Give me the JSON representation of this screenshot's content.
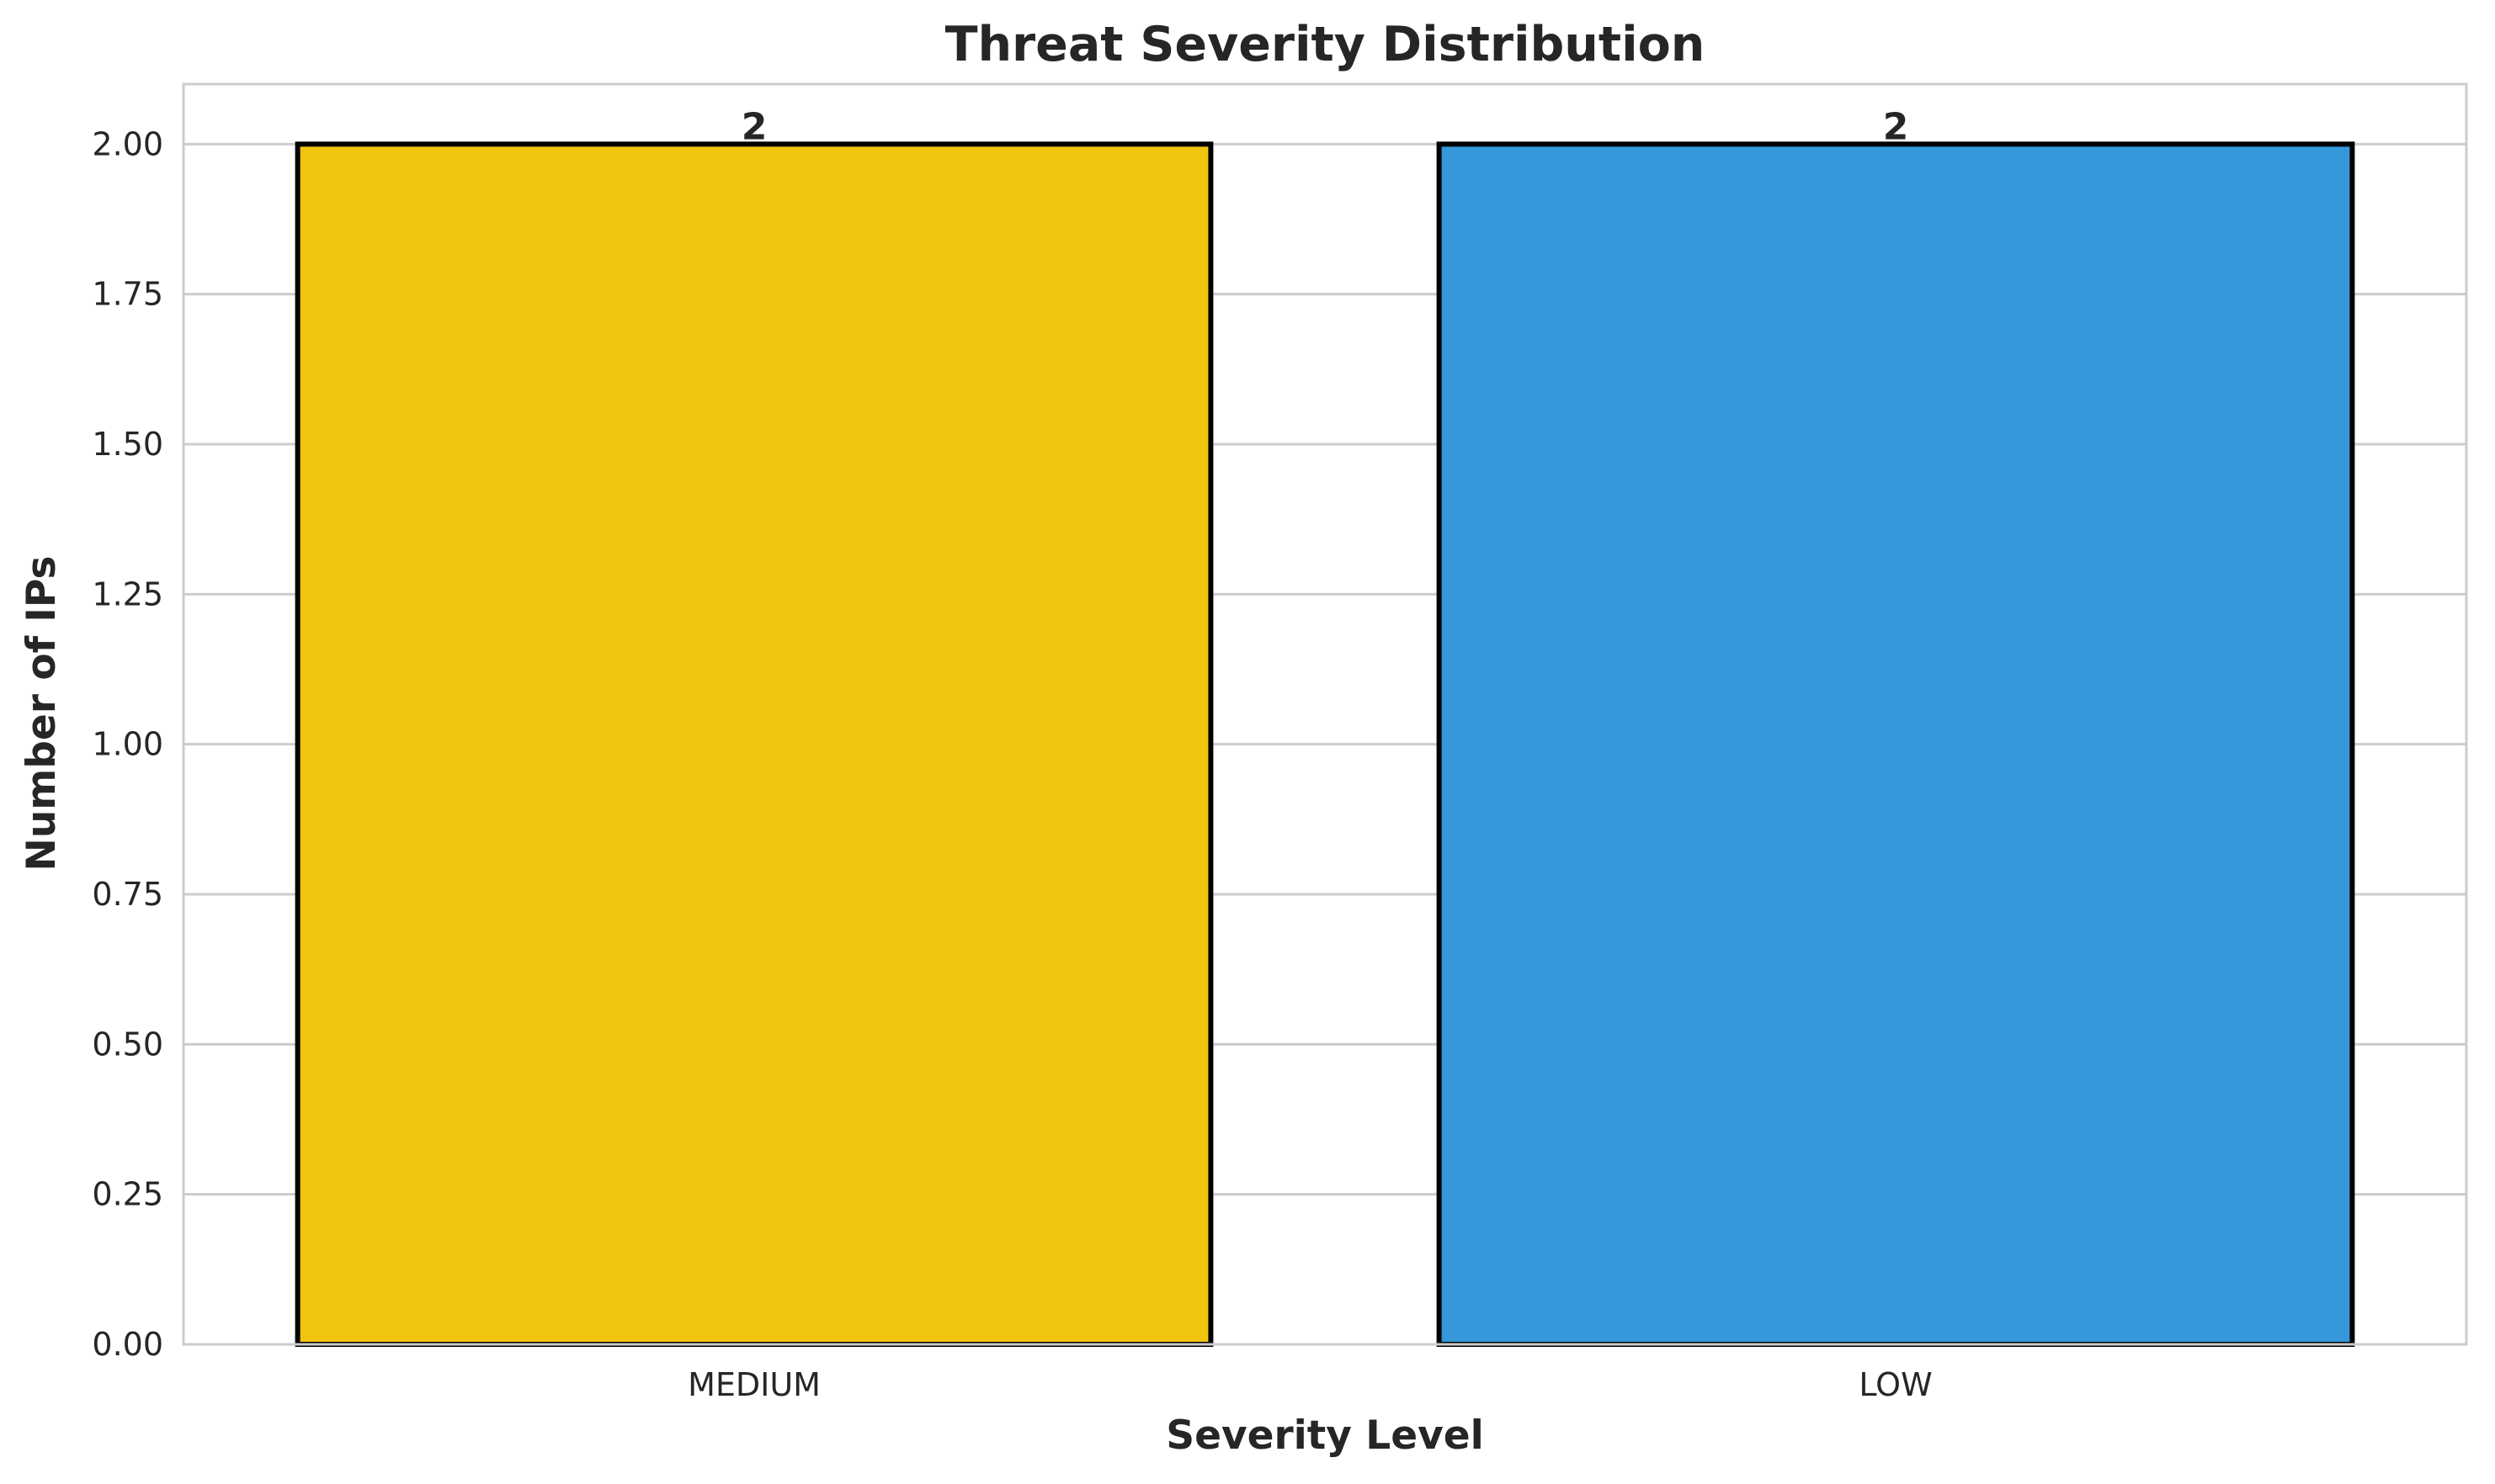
{
  "chart_data": {
    "type": "bar",
    "title": "Threat Severity Distribution",
    "xlabel": "Severity Level",
    "ylabel": "Number of IPs",
    "categories": [
      "MEDIUM",
      "LOW"
    ],
    "values": [
      2,
      2
    ],
    "value_labels": [
      "2",
      "2"
    ],
    "bar_colors": [
      "#f1c40f",
      "#3498db"
    ],
    "bar_edge_color": "#000000",
    "ylim": [
      0,
      2.1
    ],
    "yticks": [
      0,
      0.25,
      0.5,
      0.75,
      1.0,
      1.25,
      1.5,
      1.75,
      2.0
    ],
    "ytick_labels": [
      "0.00",
      "0.25",
      "0.50",
      "0.75",
      "1.00",
      "1.25",
      "1.50",
      "1.75",
      "2.00"
    ],
    "grid": "horizontal"
  }
}
